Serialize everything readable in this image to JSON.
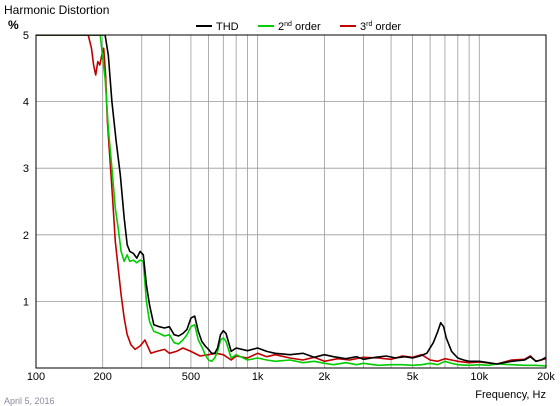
{
  "chart_data": {
    "type": "line",
    "title": "Harmonic Distortion",
    "ylabel": "%",
    "xlabel": "Frequency, Hz",
    "footer_date": "April 5, 2016",
    "x_scale": "log",
    "xlim": [
      100,
      20000
    ],
    "ylim": [
      0,
      5
    ],
    "x_ticks": [
      {
        "value": 100,
        "label": "100"
      },
      {
        "value": 200,
        "label": "200"
      },
      {
        "value": 500,
        "label": "500"
      },
      {
        "value": 1000,
        "label": "1k"
      },
      {
        "value": 2000,
        "label": "2k"
      },
      {
        "value": 5000,
        "label": "5k"
      },
      {
        "value": 10000,
        "label": "10k"
      },
      {
        "value": 20000,
        "label": "20k"
      }
    ],
    "y_ticks": [
      {
        "value": 1,
        "label": "1"
      },
      {
        "value": 2,
        "label": "2"
      },
      {
        "value": 3,
        "label": "3"
      },
      {
        "value": 4,
        "label": "4"
      },
      {
        "value": 5,
        "label": "5"
      }
    ],
    "grid": true,
    "legend": {
      "position": "top-center"
    },
    "series": [
      {
        "name": "THD",
        "name_base": "THD",
        "name_sup": "",
        "name_suffix": "",
        "color": "#000000",
        "x": [
          100,
          205,
          212,
          220,
          230,
          240,
          250,
          258,
          265,
          275,
          285,
          295,
          305,
          315,
          325,
          340,
          360,
          380,
          400,
          420,
          440,
          460,
          480,
          500,
          520,
          540,
          560,
          580,
          600,
          620,
          640,
          660,
          680,
          700,
          720,
          760,
          800,
          900,
          1000,
          1100,
          1200,
          1400,
          1600,
          1800,
          2000,
          2200,
          2500,
          2800,
          3000,
          3400,
          3800,
          4200,
          4600,
          5000,
          5400,
          5800,
          6200,
          6500,
          6700,
          6900,
          7100,
          7500,
          8000,
          8500,
          9000,
          10000,
          11000,
          12000,
          14000,
          16000,
          17000,
          18000,
          19000,
          20000
        ],
        "y": [
          5.0,
          5.0,
          4.7,
          4.0,
          3.4,
          2.9,
          2.25,
          1.85,
          1.75,
          1.72,
          1.65,
          1.75,
          1.7,
          1.25,
          0.95,
          0.65,
          0.62,
          0.6,
          0.62,
          0.5,
          0.48,
          0.52,
          0.58,
          0.75,
          0.78,
          0.55,
          0.4,
          0.33,
          0.28,
          0.22,
          0.22,
          0.3,
          0.5,
          0.56,
          0.52,
          0.25,
          0.3,
          0.26,
          0.3,
          0.25,
          0.22,
          0.2,
          0.22,
          0.16,
          0.2,
          0.17,
          0.14,
          0.17,
          0.13,
          0.16,
          0.18,
          0.15,
          0.17,
          0.15,
          0.18,
          0.22,
          0.38,
          0.55,
          0.68,
          0.62,
          0.45,
          0.25,
          0.15,
          0.12,
          0.1,
          0.1,
          0.08,
          0.06,
          0.1,
          0.12,
          0.17,
          0.1,
          0.12,
          0.16
        ]
      },
      {
        "name": "2nd order",
        "name_base": "2",
        "name_sup": "nd",
        "name_suffix": " order",
        "color": "#00cc00",
        "x": [
          100,
          195,
          200,
          205,
          212,
          220,
          228,
          235,
          242,
          250,
          258,
          265,
          275,
          285,
          295,
          305,
          315,
          325,
          340,
          360,
          380,
          400,
          420,
          440,
          460,
          480,
          500,
          520,
          540,
          560,
          580,
          600,
          620,
          640,
          660,
          680,
          700,
          720,
          760,
          800,
          900,
          1000,
          1100,
          1200,
          1400,
          1600,
          1800,
          2000,
          2200,
          2500,
          2800,
          3000,
          3500,
          4000,
          4500,
          5000,
          5500,
          6000,
          6500,
          7000,
          7500,
          8000,
          9000,
          10000,
          11000,
          12000,
          14000,
          16000,
          18000,
          20000
        ],
        "y": [
          5.0,
          5.0,
          4.65,
          4.35,
          3.6,
          3.0,
          2.4,
          2.1,
          1.75,
          1.6,
          1.7,
          1.6,
          1.62,
          1.58,
          1.62,
          1.6,
          1.0,
          0.7,
          0.55,
          0.52,
          0.48,
          0.5,
          0.38,
          0.36,
          0.42,
          0.5,
          0.62,
          0.65,
          0.42,
          0.32,
          0.2,
          0.12,
          0.1,
          0.15,
          0.25,
          0.42,
          0.45,
          0.4,
          0.15,
          0.2,
          0.12,
          0.15,
          0.12,
          0.1,
          0.12,
          0.08,
          0.1,
          0.07,
          0.05,
          0.08,
          0.05,
          0.07,
          0.04,
          0.05,
          0.05,
          0.04,
          0.05,
          0.07,
          0.05,
          0.1,
          0.07,
          0.05,
          0.04,
          0.05,
          0.04,
          0.06,
          0.05,
          0.04,
          0.04,
          0.03
        ]
      },
      {
        "name": "3rd order",
        "name_base": "3",
        "name_sup": "rd",
        "name_suffix": " order",
        "color": "#c00000",
        "x": [
          100,
          172,
          178,
          182,
          186,
          190,
          194,
          198,
          202,
          206,
          210,
          216,
          222,
          228,
          235,
          242,
          250,
          258,
          268,
          280,
          295,
          310,
          330,
          350,
          380,
          400,
          430,
          460,
          500,
          550,
          600,
          650,
          700,
          760,
          800,
          900,
          1000,
          1100,
          1200,
          1400,
          1600,
          1800,
          2000,
          2300,
          2600,
          3000,
          3500,
          4000,
          4500,
          5000,
          5500,
          6000,
          6500,
          7000,
          7500,
          8000,
          9000,
          10000,
          12000,
          14000,
          16000,
          17000,
          18000,
          20000
        ],
        "y": [
          5.0,
          5.0,
          4.8,
          4.55,
          4.4,
          4.6,
          4.55,
          4.7,
          4.8,
          4.4,
          3.7,
          3.1,
          2.5,
          1.9,
          1.5,
          1.1,
          0.75,
          0.5,
          0.35,
          0.28,
          0.33,
          0.42,
          0.22,
          0.25,
          0.28,
          0.22,
          0.25,
          0.3,
          0.25,
          0.18,
          0.2,
          0.22,
          0.2,
          0.12,
          0.18,
          0.15,
          0.22,
          0.17,
          0.2,
          0.15,
          0.12,
          0.16,
          0.1,
          0.14,
          0.12,
          0.16,
          0.15,
          0.13,
          0.18,
          0.16,
          0.2,
          0.12,
          0.1,
          0.14,
          0.12,
          0.1,
          0.08,
          0.09,
          0.06,
          0.12,
          0.13,
          0.18,
          0.1,
          0.14
        ]
      }
    ]
  }
}
